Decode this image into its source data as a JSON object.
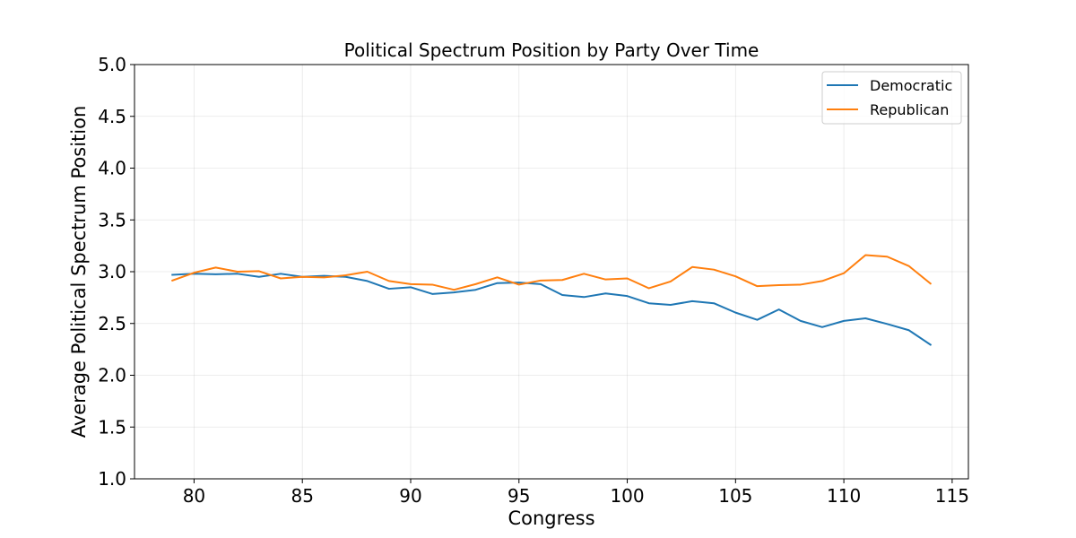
{
  "chart_data": {
    "type": "line",
    "title": "Political Spectrum Position by Party Over Time",
    "xlabel": "Congress",
    "ylabel": "Average Political Spectrum Position",
    "xlim": [
      77.25,
      115.75
    ],
    "ylim": [
      1.0,
      5.0
    ],
    "x_ticks": [
      80,
      85,
      90,
      95,
      100,
      105,
      110,
      115
    ],
    "y_ticks": [
      1.0,
      1.5,
      2.0,
      2.5,
      3.0,
      3.5,
      4.0,
      4.5,
      5.0
    ],
    "grid": true,
    "legend_position": "top-right",
    "x": [
      79,
      80,
      81,
      82,
      83,
      84,
      85,
      86,
      87,
      88,
      89,
      90,
      91,
      92,
      93,
      94,
      95,
      96,
      97,
      98,
      99,
      100,
      101,
      102,
      103,
      104,
      105,
      106,
      107,
      108,
      109,
      110,
      111,
      112,
      113,
      114
    ],
    "series": [
      {
        "name": "Democratic",
        "color": "#1f77b4",
        "values": [
          2.97,
          2.98,
          2.975,
          2.98,
          2.95,
          2.98,
          2.95,
          2.96,
          2.95,
          2.91,
          2.835,
          2.85,
          2.785,
          2.8,
          2.825,
          2.89,
          2.895,
          2.88,
          2.775,
          2.755,
          2.79,
          2.765,
          2.695,
          2.68,
          2.715,
          2.695,
          2.605,
          2.535,
          2.635,
          2.525,
          2.465,
          2.525,
          2.55,
          2.495,
          2.435,
          2.295
        ]
      },
      {
        "name": "Republican",
        "color": "#ff7f0e",
        "values": [
          2.915,
          2.99,
          3.04,
          3.0,
          3.005,
          2.935,
          2.95,
          2.945,
          2.965,
          3.0,
          2.91,
          2.88,
          2.875,
          2.825,
          2.88,
          2.945,
          2.875,
          2.915,
          2.92,
          2.98,
          2.925,
          2.935,
          2.84,
          2.905,
          3.045,
          3.02,
          2.955,
          2.86,
          2.87,
          2.875,
          2.91,
          2.985,
          3.16,
          3.145,
          3.055,
          2.885
        ]
      }
    ]
  }
}
